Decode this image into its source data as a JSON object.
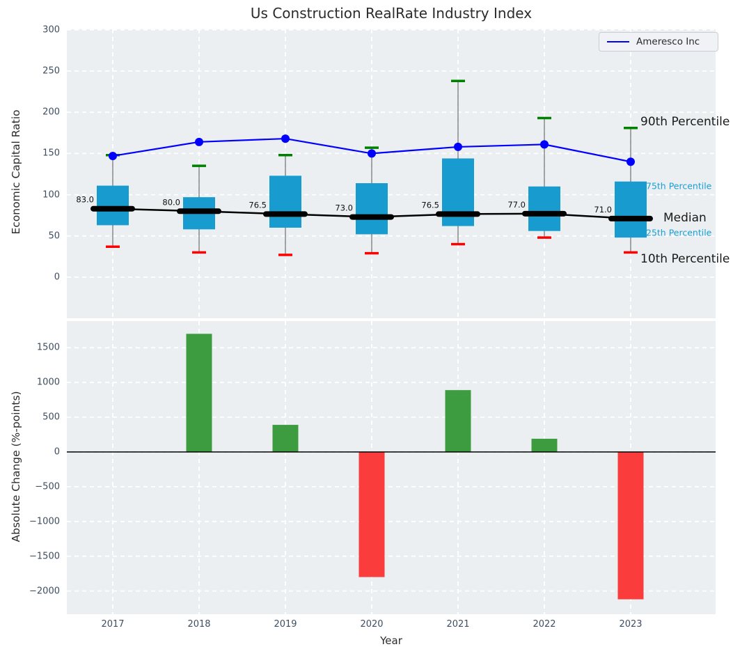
{
  "title": "Us Construction RealRate Industry Index",
  "legend": {
    "label": "Ameresco Inc"
  },
  "colors": {
    "figure_bg": "#ffffff",
    "axes_bg": "#ebeff1",
    "grid": "#ffffff",
    "box": "#189cd0",
    "whisker": "#7f7f7f",
    "cap_high": "#008000",
    "cap_low": "#ff0000",
    "median": "#000000",
    "line": "#0000ff",
    "bar_up": "#3d9c40",
    "bar_down": "#fa3c3c",
    "tick_label": "#3e4e60",
    "percentile_label": "#1a9fd4"
  },
  "chart_data": [
    {
      "type": "boxplot-with-line",
      "title": "Us Construction RealRate Industry Index",
      "ylabel": "Economic Capital Ratio",
      "yticks": [
        300,
        250,
        200,
        150,
        100,
        50,
        0
      ],
      "ylim": [
        -50,
        301
      ],
      "grid": true,
      "legend_position": "upper right",
      "categories": [
        "2017",
        "2018",
        "2019",
        "2020",
        "2021",
        "2022",
        "2023"
      ],
      "boxes": [
        {
          "year": "2017",
          "p10": 37,
          "p25": 63,
          "median": 83.0,
          "p75": 111,
          "p90": 148,
          "median_label": "83.0"
        },
        {
          "year": "2018",
          "p10": 30,
          "p25": 58,
          "median": 80.0,
          "p75": 97,
          "p90": 135,
          "median_label": "80.0"
        },
        {
          "year": "2019",
          "p10": 27,
          "p25": 60,
          "median": 76.5,
          "p75": 123,
          "p90": 148,
          "median_label": "76.5"
        },
        {
          "year": "2020",
          "p10": 29,
          "p25": 52,
          "median": 73.0,
          "p75": 114,
          "p90": 157,
          "median_label": "73.0"
        },
        {
          "year": "2021",
          "p10": 40,
          "p25": 62,
          "median": 76.5,
          "p75": 144,
          "p90": 238,
          "median_label": "76.5"
        },
        {
          "year": "2022",
          "p10": 48,
          "p25": 56,
          "median": 77.0,
          "p75": 110,
          "p90": 193,
          "median_label": "77.0"
        },
        {
          "year": "2023",
          "p10": 30,
          "p25": 48,
          "median": 71.0,
          "p75": 116,
          "p90": 181,
          "median_label": "71.0"
        }
      ],
      "series": [
        {
          "name": "Ameresco Inc",
          "values": [
            147,
            164,
            168,
            150,
            158,
            161,
            140
          ]
        }
      ],
      "annotations": [
        {
          "text": "90th Percentile",
          "x": 920,
          "y": 175,
          "style": "large"
        },
        {
          "text": "75th Percentile",
          "x": 928,
          "y": 267,
          "style": "small"
        },
        {
          "text": "Median",
          "x": 953,
          "y": 313,
          "style": "large"
        },
        {
          "text": "25th Percentile",
          "x": 928,
          "y": 334,
          "style": "small"
        },
        {
          "text": "10th Percentile",
          "x": 920,
          "y": 372,
          "style": "large"
        }
      ]
    },
    {
      "type": "bar",
      "ylabel": "Absolute Change (%-points)",
      "xlabel": "Year",
      "yticks": [
        1500,
        1000,
        500,
        0,
        -500,
        -1000,
        -1500,
        -2000
      ],
      "ylim": [
        -2330,
        1890
      ],
      "grid": true,
      "categories": [
        "2017",
        "2018",
        "2019",
        "2020",
        "2021",
        "2022",
        "2023"
      ],
      "values": [
        0,
        1700,
        390,
        -1800,
        890,
        190,
        -2120
      ]
    }
  ]
}
